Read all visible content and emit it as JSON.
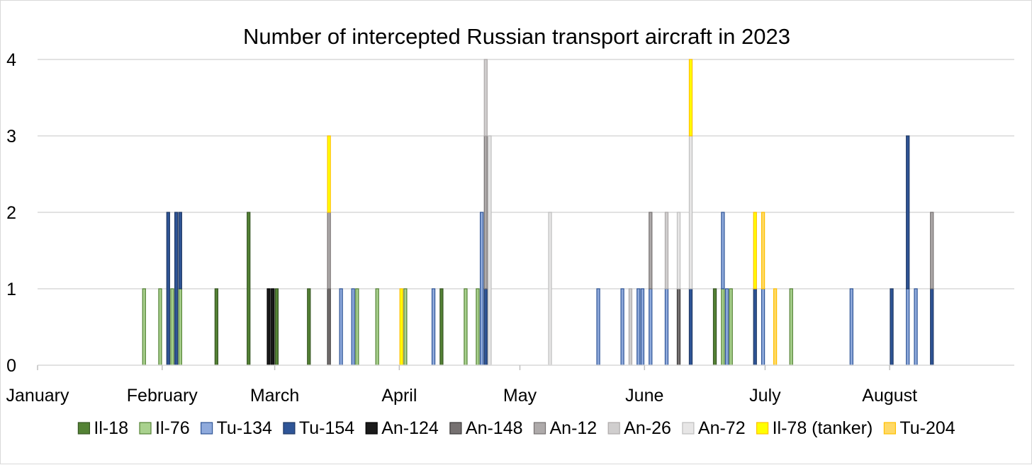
{
  "chart_data": {
    "type": "bar",
    "stacked": true,
    "title": "Number of intercepted Russian transport aircraft in 2023",
    "xlabel": "",
    "ylabel": "",
    "ylim": [
      0,
      4
    ],
    "y_ticks": [
      "0",
      "1",
      "2",
      "3",
      "4"
    ],
    "x_domain": [
      "2023-01-01",
      "2023-08-31"
    ],
    "x_ticks": [
      {
        "label": "January",
        "date": "2023-01-01"
      },
      {
        "label": "February",
        "date": "2023-02-01"
      },
      {
        "label": "March",
        "date": "2023-03-01"
      },
      {
        "label": "April",
        "date": "2023-04-01"
      },
      {
        "label": "May",
        "date": "2023-05-01"
      },
      {
        "label": "June",
        "date": "2023-06-01"
      },
      {
        "label": "July",
        "date": "2023-07-01"
      },
      {
        "label": "August",
        "date": "2023-08-01"
      }
    ],
    "grid": "horizontal",
    "legend_position": "bottom",
    "series": [
      {
        "name": "Il-18",
        "fill": "#548235",
        "stroke": "#375623",
        "points": [
          {
            "x": "2023-02-14",
            "y": 1
          },
          {
            "x": "2023-02-22",
            "y": 2
          },
          {
            "x": "2023-03-01",
            "y": 1
          },
          {
            "x": "2023-03-09",
            "y": 1
          },
          {
            "x": "2023-04-11",
            "y": 1
          },
          {
            "x": "2023-06-18",
            "y": 1
          }
        ]
      },
      {
        "name": "Il-76",
        "fill": "#a9d18e",
        "stroke": "#548235",
        "points": [
          {
            "x": "2023-01-27",
            "y": 1
          },
          {
            "x": "2023-01-31",
            "y": 1
          },
          {
            "x": "2023-02-03",
            "y": 1
          },
          {
            "x": "2023-02-05",
            "y": 1
          },
          {
            "x": "2023-03-21",
            "y": 1
          },
          {
            "x": "2023-03-26",
            "y": 1
          },
          {
            "x": "2023-04-02",
            "y": 1
          },
          {
            "x": "2023-04-17",
            "y": 1
          },
          {
            "x": "2023-04-20",
            "y": 1
          },
          {
            "x": "2023-06-20",
            "y": 1
          },
          {
            "x": "2023-06-22",
            "y": 1
          },
          {
            "x": "2023-07-07",
            "y": 1
          }
        ]
      },
      {
        "name": "Tu-134",
        "fill": "#8faadc",
        "stroke": "#2f5597",
        "points": [
          {
            "x": "2023-03-17",
            "y": 1
          },
          {
            "x": "2023-03-20",
            "y": 1
          },
          {
            "x": "2023-04-09",
            "y": 1
          },
          {
            "x": "2023-04-21",
            "y": 2
          },
          {
            "x": "2023-05-20",
            "y": 1
          },
          {
            "x": "2023-05-26",
            "y": 1
          },
          {
            "x": "2023-05-30",
            "y": 1
          },
          {
            "x": "2023-05-31",
            "y": 1
          },
          {
            "x": "2023-06-02",
            "y": 1
          },
          {
            "x": "2023-06-06",
            "y": 1
          },
          {
            "x": "2023-06-20",
            "y": 1
          },
          {
            "x": "2023-06-21",
            "y": 1
          },
          {
            "x": "2023-06-30",
            "y": 1
          },
          {
            "x": "2023-07-22",
            "y": 1
          },
          {
            "x": "2023-08-05",
            "y": 1
          },
          {
            "x": "2023-08-07",
            "y": 1
          }
        ]
      },
      {
        "name": "Tu-154",
        "fill": "#2f5597",
        "stroke": "#1f3864",
        "points": [
          {
            "x": "2023-02-02",
            "y": 2
          },
          {
            "x": "2023-02-04",
            "y": 2
          },
          {
            "x": "2023-02-05",
            "y": 1
          },
          {
            "x": "2023-04-22",
            "y": 1
          },
          {
            "x": "2023-06-12",
            "y": 1
          },
          {
            "x": "2023-06-28",
            "y": 1
          },
          {
            "x": "2023-08-01",
            "y": 1
          },
          {
            "x": "2023-08-05",
            "y": 2
          },
          {
            "x": "2023-08-11",
            "y": 1
          }
        ]
      },
      {
        "name": "An-124",
        "fill": "#1a1a1a",
        "stroke": "#000000",
        "points": [
          {
            "x": "2023-02-27",
            "y": 1
          },
          {
            "x": "2023-02-28",
            "y": 1
          }
        ]
      },
      {
        "name": "An-148",
        "fill": "#767171",
        "stroke": "#3a3838",
        "points": [
          {
            "x": "2023-03-14",
            "y": 1
          },
          {
            "x": "2023-06-09",
            "y": 1
          }
        ]
      },
      {
        "name": "An-12",
        "fill": "#aeaaaa",
        "stroke": "#767171",
        "points": [
          {
            "x": "2023-03-14",
            "y": 1
          },
          {
            "x": "2023-04-22",
            "y": 2
          },
          {
            "x": "2023-06-02",
            "y": 1
          },
          {
            "x": "2023-08-11",
            "y": 1
          }
        ]
      },
      {
        "name": "An-26",
        "fill": "#d0cece",
        "stroke": "#aeaaaa",
        "points": [
          {
            "x": "2023-04-22",
            "y": 1
          },
          {
            "x": "2023-05-28",
            "y": 1
          },
          {
            "x": "2023-06-06",
            "y": 1
          }
        ]
      },
      {
        "name": "An-72",
        "fill": "#e7e6e6",
        "stroke": "#bfbfbf",
        "points": [
          {
            "x": "2023-04-23",
            "y": 3
          },
          {
            "x": "2023-05-08",
            "y": 2
          },
          {
            "x": "2023-06-09",
            "y": 1
          },
          {
            "x": "2023-06-12",
            "y": 2
          }
        ]
      },
      {
        "name": "Il-78 (tanker)",
        "fill": "#ffff00",
        "stroke": "#ffc000",
        "points": [
          {
            "x": "2023-03-14",
            "y": 1
          },
          {
            "x": "2023-04-01",
            "y": 1
          },
          {
            "x": "2023-06-12",
            "y": 1
          },
          {
            "x": "2023-06-28",
            "y": 1
          }
        ]
      },
      {
        "name": "Tu-204",
        "fill": "#ffd966",
        "stroke": "#ffc000",
        "points": [
          {
            "x": "2023-06-30",
            "y": 1
          },
          {
            "x": "2023-07-03",
            "y": 1
          }
        ]
      }
    ]
  }
}
